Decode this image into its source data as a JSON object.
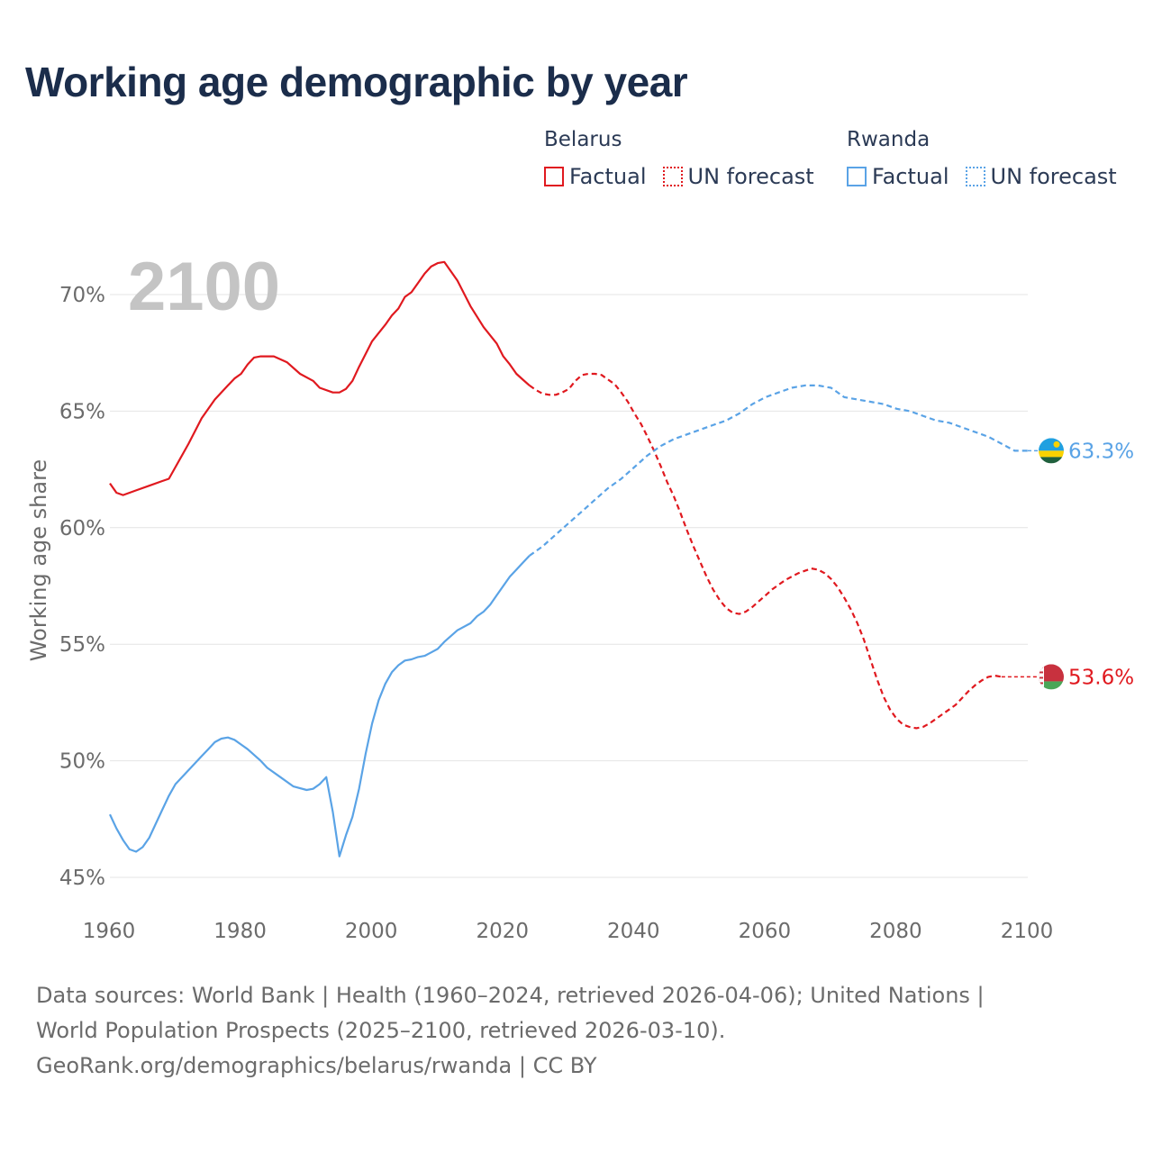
{
  "title": "Working age demographic by year",
  "legend": [
    {
      "country": "Belarus",
      "factual_label": "Factual",
      "forecast_label": "UN forecast",
      "color": "#e0191f"
    },
    {
      "country": "Rwanda",
      "factual_label": "Factual",
      "forecast_label": "UN forecast",
      "color": "#5aa3e6"
    }
  ],
  "footer": {
    "sources": "Data sources: World Bank | Health (1960–2024, retrieved 2026-04-06); United Nations | World Population Prospects (2025–2100, retrieved 2026-03-10).",
    "attribution": "GeoRank.org/demographics/belarus/rwanda | CC BY"
  },
  "chart_data": {
    "type": "line",
    "title": "Working age demographic by year",
    "year_overlay": "2100",
    "ylabel": "Working age share",
    "xlabel": "",
    "xlim": [
      1960,
      2100
    ],
    "ylim": [
      45,
      72
    ],
    "x_ticks": [
      "1960",
      "1980",
      "2000",
      "2020",
      "2040",
      "2060",
      "2080",
      "2100"
    ],
    "y_ticks": [
      "45%",
      "50%",
      "55%",
      "60%",
      "65%",
      "70%"
    ],
    "y_tick_values": [
      45,
      50,
      55,
      60,
      65,
      70
    ],
    "grid": true,
    "forecast_start_year": 2024,
    "series": [
      {
        "name": "Belarus",
        "color": "#e0191f",
        "end_label": "53.6%",
        "flag_colors": [
          "#c8313e",
          "#4aa657",
          "#ffffff"
        ],
        "points": [
          [
            1960,
            61.9
          ],
          [
            1961,
            61.5
          ],
          [
            1962,
            61.4
          ],
          [
            1964,
            61.6
          ],
          [
            1966,
            61.8
          ],
          [
            1968,
            62.0
          ],
          [
            1969,
            62.1
          ],
          [
            1970,
            62.6
          ],
          [
            1972,
            63.6
          ],
          [
            1974,
            64.7
          ],
          [
            1976,
            65.5
          ],
          [
            1978,
            66.1
          ],
          [
            1979,
            66.4
          ],
          [
            1980,
            66.6
          ],
          [
            1981,
            67.0
          ],
          [
            1982,
            67.3
          ],
          [
            1983,
            67.35
          ],
          [
            1984,
            67.35
          ],
          [
            1985,
            67.35
          ],
          [
            1987,
            67.1
          ],
          [
            1989,
            66.6
          ],
          [
            1991,
            66.3
          ],
          [
            1992,
            66.0
          ],
          [
            1994,
            65.8
          ],
          [
            1995,
            65.8
          ],
          [
            1996,
            65.95
          ],
          [
            1997,
            66.3
          ],
          [
            1998,
            66.9
          ],
          [
            2000,
            68.0
          ],
          [
            2002,
            68.7
          ],
          [
            2003,
            69.1
          ],
          [
            2004,
            69.4
          ],
          [
            2005,
            69.9
          ],
          [
            2006,
            70.1
          ],
          [
            2007,
            70.5
          ],
          [
            2008,
            70.9
          ],
          [
            2009,
            71.2
          ],
          [
            2010,
            71.35
          ],
          [
            2011,
            71.4
          ],
          [
            2012,
            71.0
          ],
          [
            2013,
            70.6
          ],
          [
            2015,
            69.5
          ],
          [
            2017,
            68.6
          ],
          [
            2019,
            67.9
          ],
          [
            2020,
            67.35
          ],
          [
            2021,
            67.0
          ],
          [
            2022,
            66.6
          ],
          [
            2023,
            66.35
          ],
          [
            2024,
            66.1
          ]
        ],
        "forecast_points": [
          [
            2024,
            66.1
          ],
          [
            2025,
            65.9
          ],
          [
            2026,
            65.75
          ],
          [
            2027,
            65.7
          ],
          [
            2028,
            65.7
          ],
          [
            2029,
            65.8
          ],
          [
            2030,
            65.95
          ],
          [
            2031,
            66.3
          ],
          [
            2032,
            66.55
          ],
          [
            2033,
            66.6
          ],
          [
            2034,
            66.6
          ],
          [
            2035,
            66.55
          ],
          [
            2036,
            66.35
          ],
          [
            2037,
            66.15
          ],
          [
            2038,
            65.8
          ],
          [
            2039,
            65.4
          ],
          [
            2040,
            64.9
          ],
          [
            2041,
            64.45
          ],
          [
            2042,
            63.9
          ],
          [
            2043,
            63.3
          ],
          [
            2044,
            62.65
          ],
          [
            2045,
            61.95
          ],
          [
            2046,
            61.35
          ],
          [
            2047,
            60.65
          ],
          [
            2048,
            59.9
          ],
          [
            2049,
            59.2
          ],
          [
            2050,
            58.55
          ],
          [
            2051,
            57.9
          ],
          [
            2052,
            57.35
          ],
          [
            2053,
            56.9
          ],
          [
            2054,
            56.55
          ],
          [
            2055,
            56.35
          ],
          [
            2056,
            56.3
          ],
          [
            2057,
            56.4
          ],
          [
            2058,
            56.6
          ],
          [
            2059,
            56.85
          ],
          [
            2060,
            57.1
          ],
          [
            2061,
            57.35
          ],
          [
            2062,
            57.55
          ],
          [
            2063,
            57.75
          ],
          [
            2064,
            57.9
          ],
          [
            2065,
            58.05
          ],
          [
            2066,
            58.15
          ],
          [
            2067,
            58.25
          ],
          [
            2068,
            58.2
          ],
          [
            2069,
            58.05
          ],
          [
            2070,
            57.8
          ],
          [
            2071,
            57.45
          ],
          [
            2072,
            57.0
          ],
          [
            2073,
            56.5
          ],
          [
            2074,
            55.9
          ],
          [
            2075,
            55.2
          ],
          [
            2076,
            54.35
          ],
          [
            2077,
            53.5
          ],
          [
            2078,
            52.75
          ],
          [
            2079,
            52.2
          ],
          [
            2080,
            51.8
          ],
          [
            2081,
            51.55
          ],
          [
            2082,
            51.45
          ],
          [
            2083,
            51.4
          ],
          [
            2084,
            51.45
          ],
          [
            2085,
            51.6
          ],
          [
            2086,
            51.8
          ],
          [
            2087,
            52.0
          ],
          [
            2088,
            52.2
          ],
          [
            2089,
            52.4
          ],
          [
            2090,
            52.7
          ],
          [
            2091,
            53.0
          ],
          [
            2092,
            53.25
          ],
          [
            2093,
            53.45
          ],
          [
            2094,
            53.6
          ],
          [
            2095,
            53.65
          ],
          [
            2096,
            53.6
          ]
        ]
      },
      {
        "name": "Rwanda",
        "color": "#5aa3e6",
        "end_label": "63.3%",
        "flag_colors": [
          "#20a0e0",
          "#fad201",
          "#20603d"
        ],
        "points": [
          [
            1960,
            47.7
          ],
          [
            1961,
            47.1
          ],
          [
            1962,
            46.6
          ],
          [
            1963,
            46.2
          ],
          [
            1964,
            46.1
          ],
          [
            1965,
            46.3
          ],
          [
            1966,
            46.7
          ],
          [
            1967,
            47.3
          ],
          [
            1968,
            47.9
          ],
          [
            1969,
            48.5
          ],
          [
            1970,
            49.0
          ],
          [
            1972,
            49.6
          ],
          [
            1974,
            50.2
          ],
          [
            1975,
            50.5
          ],
          [
            1976,
            50.8
          ],
          [
            1977,
            50.95
          ],
          [
            1978,
            51.0
          ],
          [
            1979,
            50.9
          ],
          [
            1980,
            50.7
          ],
          [
            1981,
            50.5
          ],
          [
            1983,
            50.0
          ],
          [
            1984,
            49.7
          ],
          [
            1986,
            49.3
          ],
          [
            1988,
            48.9
          ],
          [
            1990,
            48.75
          ],
          [
            1991,
            48.8
          ],
          [
            1992,
            49.0
          ],
          [
            1993,
            49.3
          ],
          [
            1994,
            47.8
          ],
          [
            1995,
            45.9
          ],
          [
            1996,
            46.8
          ],
          [
            1997,
            47.6
          ],
          [
            1998,
            48.8
          ],
          [
            1999,
            50.3
          ],
          [
            2000,
            51.6
          ],
          [
            2001,
            52.6
          ],
          [
            2002,
            53.3
          ],
          [
            2003,
            53.8
          ],
          [
            2004,
            54.1
          ],
          [
            2005,
            54.3
          ],
          [
            2006,
            54.35
          ],
          [
            2007,
            54.45
          ],
          [
            2008,
            54.5
          ],
          [
            2009,
            54.65
          ],
          [
            2010,
            54.8
          ],
          [
            2011,
            55.1
          ],
          [
            2013,
            55.6
          ],
          [
            2015,
            55.9
          ],
          [
            2016,
            56.2
          ],
          [
            2017,
            56.4
          ],
          [
            2018,
            56.7
          ],
          [
            2019,
            57.1
          ],
          [
            2020,
            57.5
          ],
          [
            2021,
            57.9
          ],
          [
            2022,
            58.2
          ],
          [
            2023,
            58.5
          ],
          [
            2024,
            58.8
          ]
        ],
        "forecast_points": [
          [
            2024,
            58.8
          ],
          [
            2026,
            59.2
          ],
          [
            2028,
            59.7
          ],
          [
            2030,
            60.2
          ],
          [
            2032,
            60.7
          ],
          [
            2034,
            61.2
          ],
          [
            2036,
            61.7
          ],
          [
            2038,
            62.1
          ],
          [
            2040,
            62.6
          ],
          [
            2042,
            63.1
          ],
          [
            2044,
            63.5
          ],
          [
            2046,
            63.8
          ],
          [
            2048,
            64.0
          ],
          [
            2050,
            64.2
          ],
          [
            2052,
            64.4
          ],
          [
            2054,
            64.6
          ],
          [
            2056,
            64.9
          ],
          [
            2058,
            65.3
          ],
          [
            2060,
            65.6
          ],
          [
            2062,
            65.8
          ],
          [
            2064,
            66.0
          ],
          [
            2066,
            66.1
          ],
          [
            2068,
            66.1
          ],
          [
            2070,
            66.0
          ],
          [
            2072,
            65.6
          ],
          [
            2074,
            65.5
          ],
          [
            2076,
            65.4
          ],
          [
            2078,
            65.3
          ],
          [
            2080,
            65.1
          ],
          [
            2082,
            65.0
          ],
          [
            2084,
            64.8
          ],
          [
            2086,
            64.6
          ],
          [
            2088,
            64.5
          ],
          [
            2090,
            64.3
          ],
          [
            2092,
            64.1
          ],
          [
            2094,
            63.9
          ],
          [
            2096,
            63.6
          ],
          [
            2098,
            63.3
          ],
          [
            2100,
            63.3
          ]
        ]
      }
    ]
  }
}
